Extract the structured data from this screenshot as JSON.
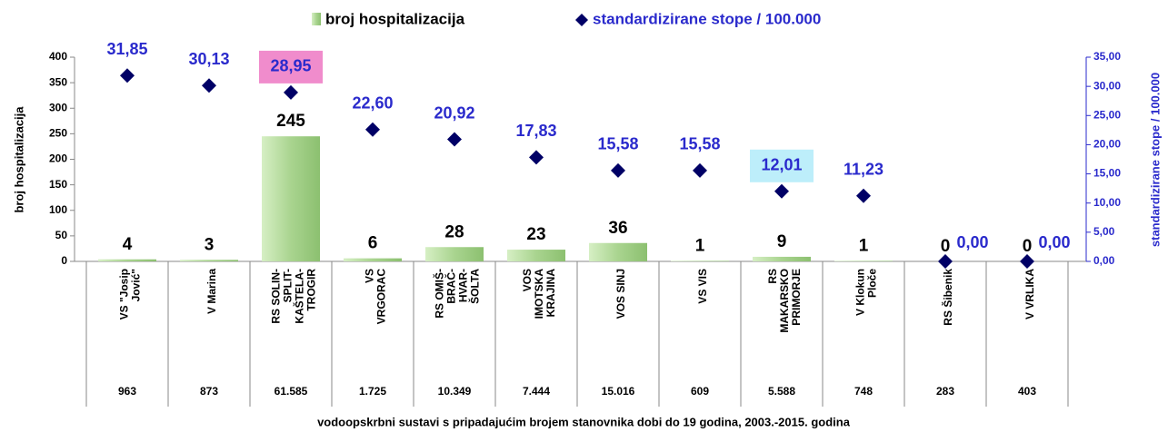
{
  "chart_data": {
    "type": "bar_marker",
    "legend": [
      "broj hospitalizacija",
      "standardizirane stope / 100.000"
    ],
    "ylabel": "broj hospitalizacija",
    "y2label": "standardizirane stope / 100.000",
    "xlabel": "vodoopskrbni sustavi s pripadajućim brojem stanovnika dobi do 19 godina, 2003.-2015. godina",
    "categories": [
      [
        "VS \"Josip",
        "Jović\""
      ],
      [
        "V Marina"
      ],
      [
        "RS SOLIN-",
        "SPLIT-",
        "KAŠTELA-",
        "TROGIR"
      ],
      [
        "VS",
        "VRGORAC"
      ],
      [
        "RS OMIŠ-",
        "BRAČ-",
        "HVAR-",
        "ŠOLTA"
      ],
      [
        "VOS",
        "IMOTSKA",
        "KRAJINA"
      ],
      [
        "VOS SINJ"
      ],
      [
        "VS VIS"
      ],
      [
        "RS",
        "MAKARSKO",
        "PRIMORJE"
      ],
      [
        "V Klokun",
        "Ploče"
      ],
      [
        "RS Šibenik"
      ],
      [
        "V VRLIKA"
      ]
    ],
    "populations": [
      "963",
      "873",
      "61.585",
      "1.725",
      "10.349",
      "7.444",
      "15.016",
      "609",
      "5.588",
      "748",
      "283",
      "403"
    ],
    "series": [
      {
        "name": "broj hospitalizacija",
        "color": "#a9d48f",
        "values": [
          4,
          3,
          245,
          6,
          28,
          23,
          36,
          1,
          9,
          1,
          0,
          0
        ]
      },
      {
        "name": "standardizirane stope / 100.000",
        "color": "#000066",
        "axis": "y2",
        "label_color": "#2a2acc",
        "values": [
          31.85,
          30.13,
          28.95,
          22.6,
          20.92,
          17.83,
          15.58,
          15.58,
          12.01,
          11.23,
          0,
          0
        ],
        "value_labels": [
          "31,85",
          "30,13",
          "28,95",
          "22,60",
          "20,92",
          "17,83",
          "15,58",
          "15,58",
          "12,01",
          "11,23",
          "0,00",
          "0,00"
        ]
      }
    ],
    "label_highlights": [
      {
        "index": 2,
        "color": "#f08ccc"
      },
      {
        "index": 8,
        "color": "#bdeefa"
      }
    ],
    "ylim": [
      0,
      400
    ],
    "yticks": [
      0,
      50,
      100,
      150,
      200,
      250,
      300,
      350,
      400
    ],
    "y2lim": [
      0,
      35
    ],
    "y2ticks": [
      {
        "value": 0,
        "label": "0,00"
      },
      {
        "value": 5,
        "label": "5,00"
      },
      {
        "value": 10,
        "label": "10,00"
      },
      {
        "value": 15,
        "label": "15,00"
      },
      {
        "value": 20,
        "label": "20,00"
      },
      {
        "value": 25,
        "label": "25,00"
      },
      {
        "value": 30,
        "label": "30,00"
      },
      {
        "value": 35,
        "label": "35,00"
      }
    ]
  }
}
